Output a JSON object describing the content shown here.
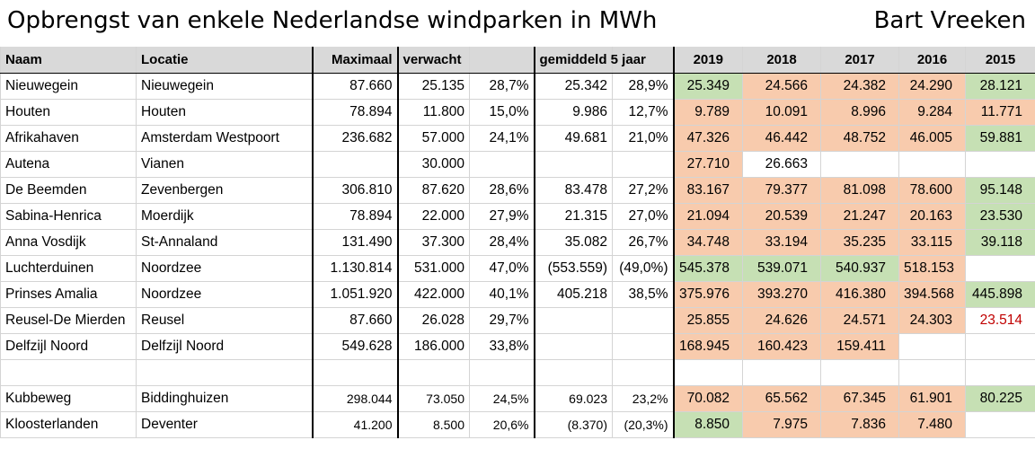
{
  "title": "Opbrengst van enkele Nederlandse windparken in MWh",
  "author": "Bart Vreeken",
  "headers": [
    "Naam",
    "Locatie",
    "Maximaal",
    "verwacht",
    "",
    "gemiddeld 5 jaar",
    "",
    "2019",
    "2018",
    "2017",
    "2016",
    "2015"
  ],
  "colors": {
    "green": "#c6e0b4",
    "orange": "#f8cbad",
    "header": "#d9d9d9",
    "red": "#c00000"
  },
  "rows": [
    {
      "cells": [
        "Nieuwegein",
        "Nieuwegein",
        "87.660",
        "25.135",
        "28,7%",
        "25.342",
        "28,9%",
        "25.349",
        "24.566",
        "24.382",
        "24.290",
        "28.121"
      ],
      "fills": [
        "green",
        "orange",
        "orange",
        "orange",
        "green"
      ]
    },
    {
      "cells": [
        "Houten",
        "Houten",
        "78.894",
        "11.800",
        "15,0%",
        "9.986",
        "12,7%",
        "9.789",
        "10.091",
        "8.996",
        "9.284",
        "11.771"
      ],
      "fills": [
        "orange",
        "orange",
        "orange",
        "orange",
        "orange"
      ]
    },
    {
      "cells": [
        "Afrikahaven",
        "Amsterdam Westpoort",
        "236.682",
        "57.000",
        "24,1%",
        "49.681",
        "21,0%",
        "47.326",
        "46.442",
        "48.752",
        "46.005",
        "59.881"
      ],
      "fills": [
        "orange",
        "orange",
        "orange",
        "orange",
        "green"
      ]
    },
    {
      "cells": [
        "Autena",
        "Vianen",
        "",
        "30.000",
        "",
        "",
        "",
        "27.710",
        "26.663",
        "",
        "",
        ""
      ],
      "fills": [
        "orange",
        "",
        "",
        "",
        ""
      ]
    },
    {
      "cells": [
        "De Beemden",
        "Zevenbergen",
        "306.810",
        "87.620",
        "28,6%",
        "83.478",
        "27,2%",
        "83.167",
        "79.377",
        "81.098",
        "78.600",
        "95.148"
      ],
      "fills": [
        "orange",
        "orange",
        "orange",
        "orange",
        "green"
      ]
    },
    {
      "cells": [
        "Sabina-Henrica",
        "Moerdijk",
        "78.894",
        "22.000",
        "27,9%",
        "21.315",
        "27,0%",
        "21.094",
        "20.539",
        "21.247",
        "20.163",
        "23.530"
      ],
      "fills": [
        "orange",
        "orange",
        "orange",
        "orange",
        "green"
      ]
    },
    {
      "cells": [
        "Anna Vosdijk",
        "St-Annaland",
        "131.490",
        "37.300",
        "28,4%",
        "35.082",
        "26,7%",
        "34.748",
        "33.194",
        "35.235",
        "33.115",
        "39.118"
      ],
      "fills": [
        "orange",
        "orange",
        "orange",
        "orange",
        "green"
      ]
    },
    {
      "cells": [
        "Luchterduinen",
        "Noordzee",
        "1.130.814",
        "531.000",
        "47,0%",
        "(553.559)",
        "(49,0%)",
        "545.378",
        "539.071",
        "540.937",
        "518.153",
        ""
      ],
      "fills": [
        "green",
        "green",
        "green",
        "orange",
        ""
      ]
    },
    {
      "cells": [
        "Prinses Amalia",
        "Noordzee",
        "1.051.920",
        "422.000",
        "40,1%",
        "405.218",
        "38,5%",
        "375.976",
        "393.270",
        "416.380",
        "394.568",
        "445.898"
      ],
      "fills": [
        "orange",
        "orange",
        "orange",
        "orange",
        "green"
      ]
    },
    {
      "cells": [
        "Reusel-De Mierden",
        "Reusel",
        "87.660",
        "26.028",
        "29,7%",
        "",
        "",
        "25.855",
        "24.626",
        "24.571",
        "24.303",
        "23.514"
      ],
      "fills": [
        "orange",
        "orange",
        "orange",
        "orange",
        "red"
      ]
    },
    {
      "cells": [
        "Delfzijl Noord",
        "Delfzijl Noord",
        "549.628",
        "186.000",
        "33,8%",
        "",
        "",
        "168.945",
        "160.423",
        "159.411",
        "",
        ""
      ],
      "fills": [
        "orange",
        "orange",
        "orange",
        "",
        ""
      ]
    },
    {
      "cells": [
        "",
        "",
        "",
        "",
        "",
        "",
        "",
        "",
        "",
        "",
        "",
        ""
      ],
      "fills": [
        "",
        "",
        "",
        "",
        ""
      ]
    },
    {
      "cells": [
        "Kubbeweg",
        "Biddinghuizen",
        "298.044",
        "73.050",
        "24,5%",
        "69.023",
        "23,2%",
        "70.082",
        "65.562",
        "67.345",
        "61.901",
        "80.225"
      ],
      "fills": [
        "orange",
        "orange",
        "orange",
        "orange",
        "green"
      ],
      "small": true
    },
    {
      "cells": [
        "Kloosterlanden",
        "Deventer",
        "41.200",
        "8.500",
        "20,6%",
        "(8.370)",
        "(20,3%)",
        "8.850",
        "7.975",
        "7.836",
        "7.480",
        ""
      ],
      "fills": [
        "green",
        "orange",
        "orange",
        "orange",
        ""
      ],
      "small": true
    }
  ]
}
